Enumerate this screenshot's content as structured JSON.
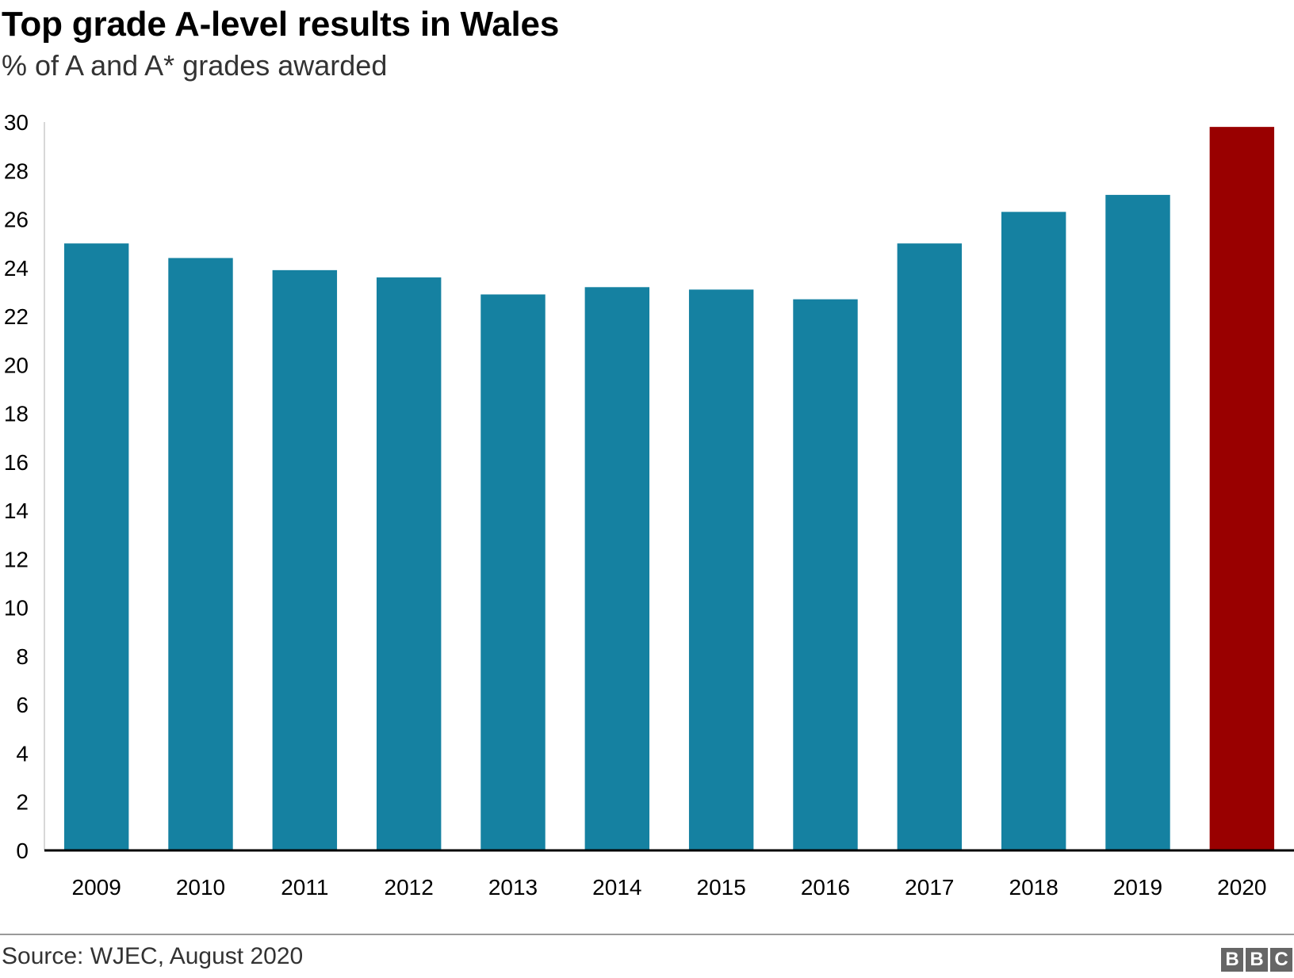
{
  "header": {
    "title": "Top grade A-level results in Wales",
    "subtitle": "% of A and A* grades awarded"
  },
  "footer": {
    "source": "Source: WJEC, August 2020",
    "logo_letters": [
      "B",
      "B",
      "C"
    ]
  },
  "colors": {
    "bar": "#1581a1",
    "highlight": "#990000",
    "axis": "#000000"
  },
  "chart_data": {
    "type": "bar",
    "title": "Top grade A-level results in Wales",
    "subtitle": "% of A and A* grades awarded",
    "categories": [
      "2009",
      "2010",
      "2011",
      "2012",
      "2013",
      "2014",
      "2015",
      "2016",
      "2017",
      "2018",
      "2019",
      "2020"
    ],
    "values": [
      25.0,
      24.4,
      23.9,
      23.6,
      22.9,
      23.2,
      23.1,
      22.7,
      25.0,
      26.3,
      27.0,
      29.8
    ],
    "highlight_index": 11,
    "xlabel": "",
    "ylabel": "",
    "ylim": [
      0,
      30
    ],
    "yticks": [
      0,
      2,
      4,
      6,
      8,
      10,
      12,
      14,
      16,
      18,
      20,
      22,
      24,
      26,
      28,
      30
    ],
    "grid": false,
    "legend": "none"
  }
}
